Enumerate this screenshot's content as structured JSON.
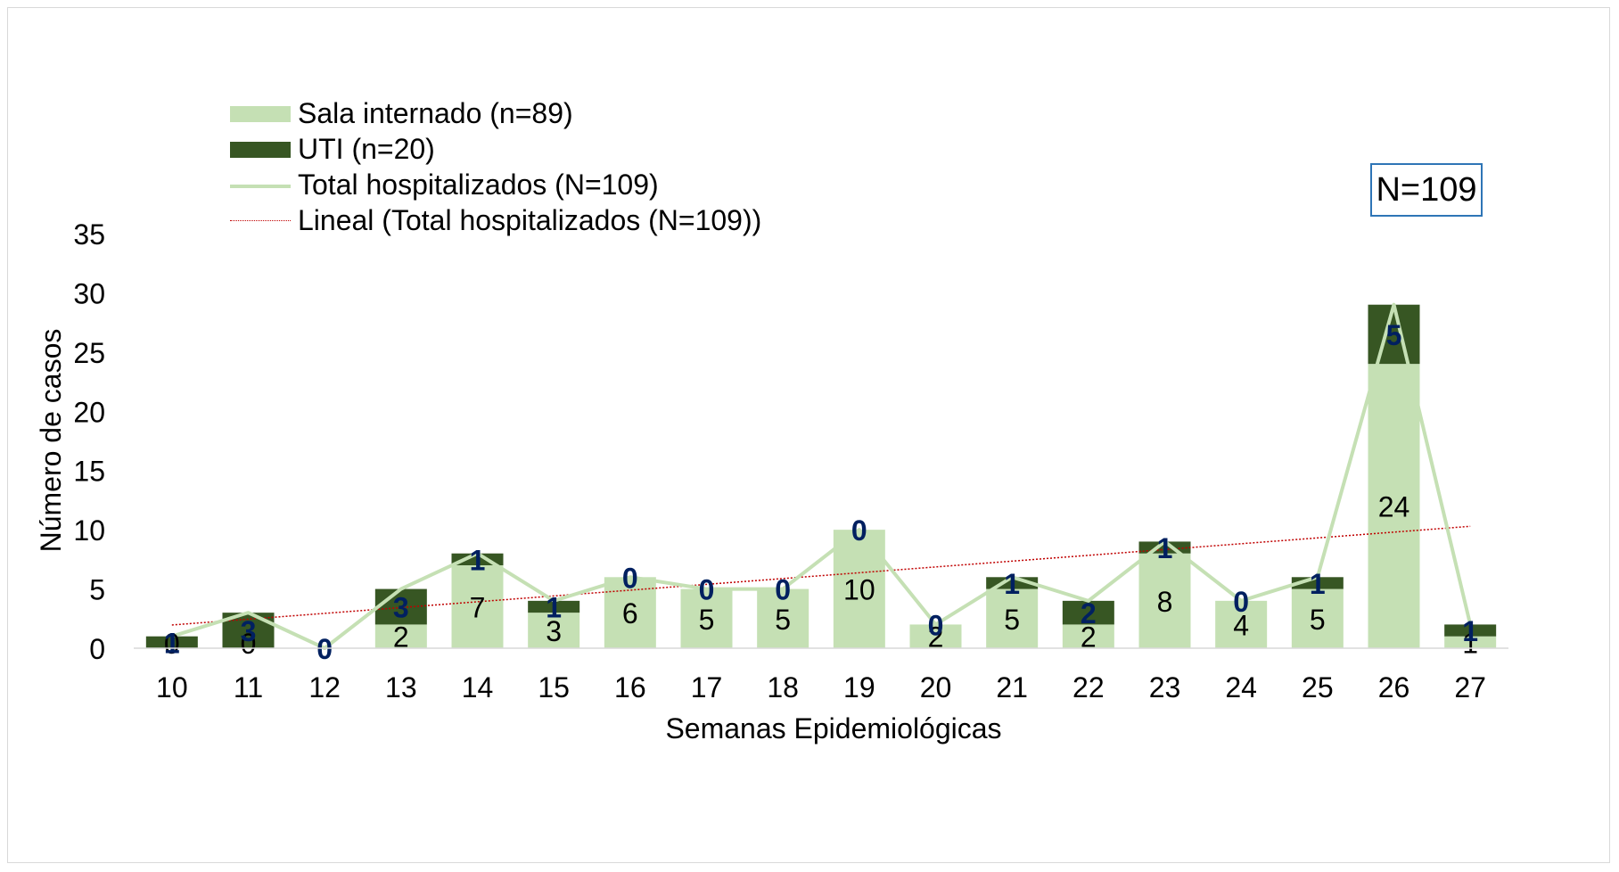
{
  "chart_data": {
    "type": "bar",
    "stacked": true,
    "categories": [
      "10",
      "11",
      "12",
      "13",
      "14",
      "15",
      "16",
      "17",
      "18",
      "19",
      "20",
      "21",
      "22",
      "23",
      "24",
      "25",
      "26",
      "27"
    ],
    "series": [
      {
        "name": "Sala internado (n=89)",
        "kind": "bar",
        "color": "#c5e0b4",
        "values": [
          0,
          0,
          0,
          2,
          7,
          3,
          6,
          5,
          5,
          10,
          2,
          5,
          2,
          8,
          4,
          5,
          24,
          1
        ]
      },
      {
        "name": "UTI (n=20)",
        "kind": "bar",
        "color": "#375623",
        "values": [
          1,
          3,
          0,
          3,
          1,
          1,
          0,
          0,
          0,
          0,
          0,
          1,
          2,
          1,
          0,
          1,
          5,
          1
        ]
      },
      {
        "name": "Total hospitalizados (N=109)",
        "kind": "line",
        "color": "#c5e0b4",
        "values": [
          1,
          3,
          0,
          5,
          8,
          4,
          6,
          5,
          5,
          10,
          2,
          6,
          4,
          9,
          4,
          6,
          29,
          2
        ]
      },
      {
        "name": "Lineal (Total hospitalizados (N=109))",
        "kind": "trendline",
        "color": "#c00000",
        "values": [
          1.96,
          2.45,
          2.94,
          3.43,
          3.92,
          4.41,
          4.9,
          5.39,
          5.88,
          6.37,
          6.86,
          7.35,
          7.84,
          8.33,
          8.82,
          9.31,
          9.8,
          10.29
        ]
      }
    ],
    "xlabel": "Semanas Epidemiológicas",
    "ylabel": "Número de casos",
    "ylim": [
      0,
      35
    ],
    "yticks": [
      "0",
      "5",
      "10",
      "15",
      "20",
      "25",
      "30",
      "35"
    ],
    "grid": false,
    "legend_position": "top-left",
    "annotation": "N=109"
  }
}
